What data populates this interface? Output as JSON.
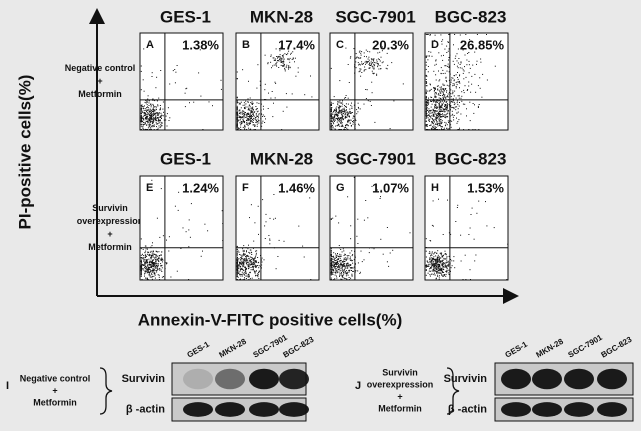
{
  "figure": {
    "y_axis_label": "PI-positive cells(%)",
    "x_axis_label": "Annexin-V-FITC positive cells(%)",
    "rows": [
      {
        "label_lines": [
          "Negative control",
          "+",
          "Metformin"
        ],
        "panels": [
          {
            "header": "GES-1",
            "letter": "A",
            "percent": "1.38%"
          },
          {
            "header": "MKN-28",
            "letter": "B",
            "percent": "17.4%"
          },
          {
            "header": "SGC-7901",
            "letter": "C",
            "percent": "20.3%"
          },
          {
            "header": "BGC-823",
            "letter": "D",
            "percent": "26.85%"
          }
        ]
      },
      {
        "label_lines": [
          "Survivin",
          "overexpression",
          "+",
          "Metformin"
        ],
        "panels": [
          {
            "header": "GES-1",
            "letter": "E",
            "percent": "1.24%"
          },
          {
            "header": "MKN-28",
            "letter": "F",
            "percent": "1.46%"
          },
          {
            "header": "SGC-7901",
            "letter": "G",
            "percent": "1.07%"
          },
          {
            "header": "BGC-823",
            "letter": "H",
            "percent": "1.53%"
          }
        ]
      }
    ],
    "blots": [
      {
        "letter": "I",
        "condition_lines": [
          "Negative control",
          "+",
          "Metformin"
        ],
        "lanes": [
          "GES-1",
          "MKN-28",
          "SGC-7901",
          "BGC-823"
        ],
        "proteins": [
          "Survivin",
          "β -actin"
        ]
      },
      {
        "letter": "J",
        "condition_lines": [
          "Survivin",
          "overexpression",
          "+",
          "Metformin"
        ],
        "lanes": [
          "GES-1",
          "MKN-28",
          "SGC-7901",
          "BGC-823"
        ],
        "proteins": [
          "Survivin",
          "β -actin"
        ]
      }
    ]
  }
}
